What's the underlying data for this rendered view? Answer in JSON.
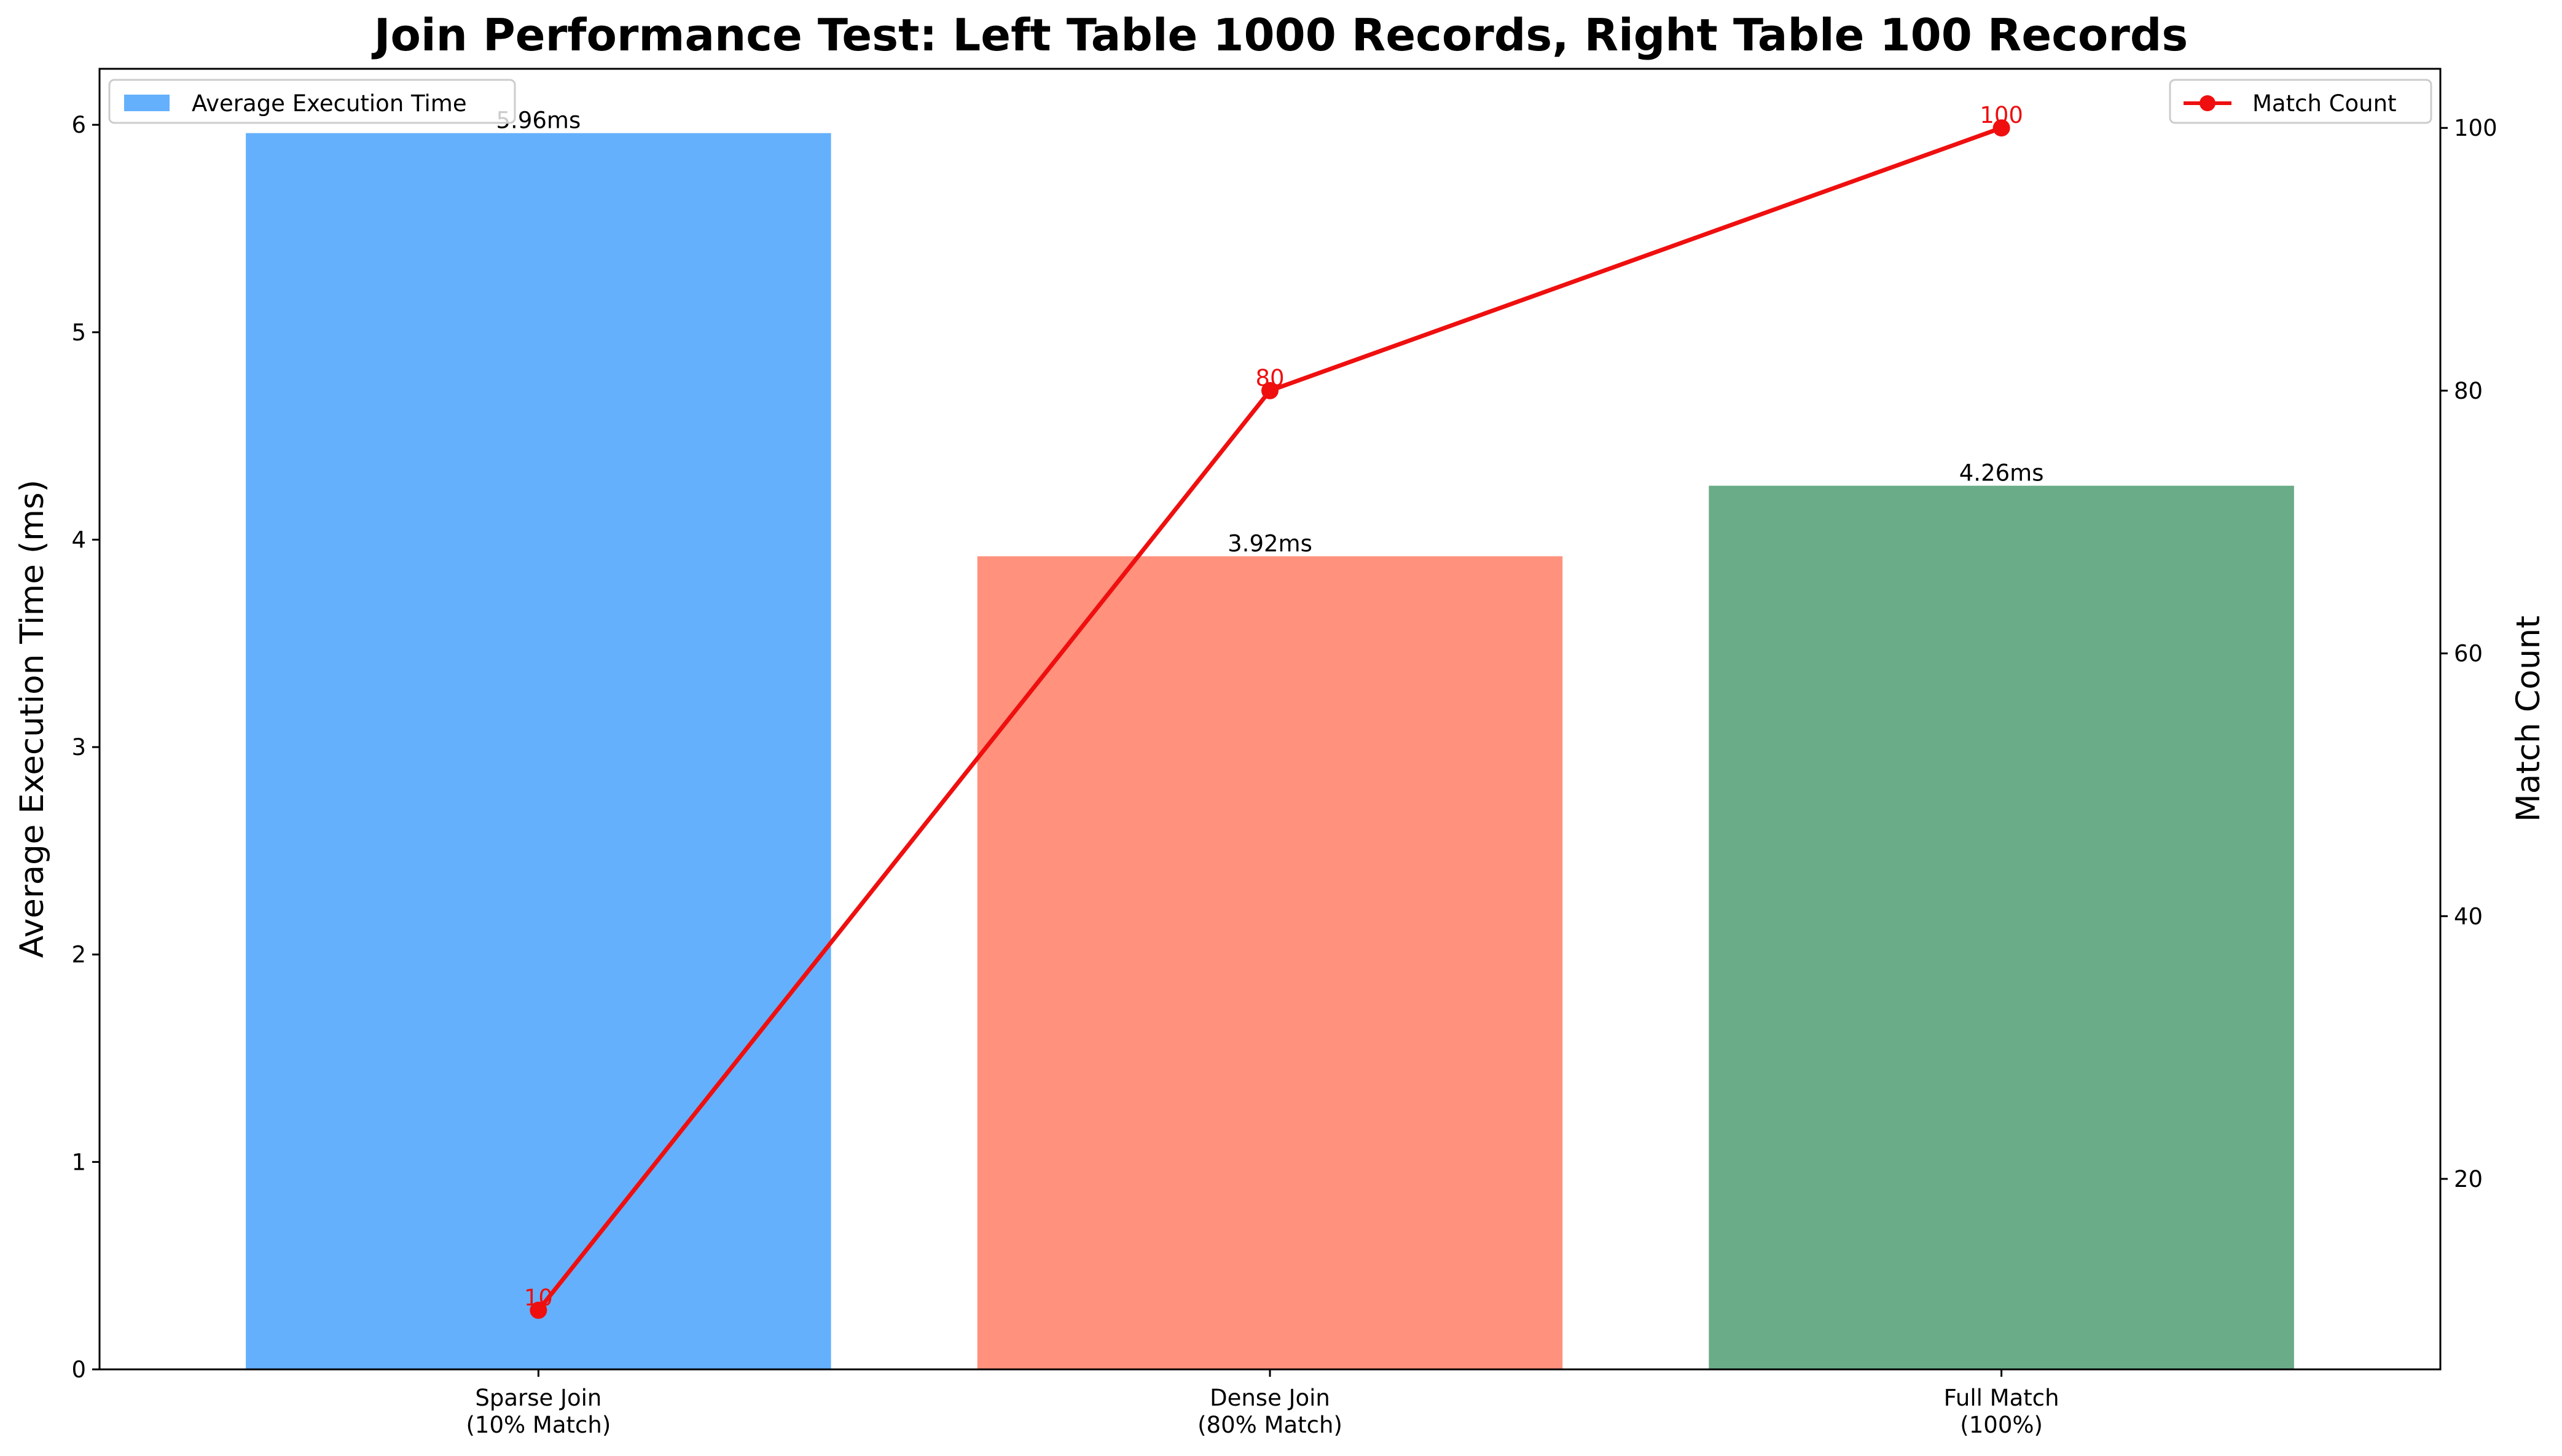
{
  "chart_data": {
    "type": "bar",
    "title": "Join Performance Test: Left Table 1000 Records, Right Table 100 Records",
    "categories": [
      [
        "Sparse Join",
        "(10% Match)"
      ],
      [
        "Dense Join",
        "(80% Match)"
      ],
      [
        "Full Match",
        "(100%)"
      ]
    ],
    "bar_series": {
      "name": "Average Execution Time",
      "values": [
        5.96,
        3.92,
        4.26
      ],
      "labels": [
        "5.96ms",
        "3.92ms",
        "4.26ms"
      ],
      "colors": [
        "#64b0fd",
        "#ff917d",
        "#6aac88"
      ]
    },
    "line_series": {
      "name": "Match Count",
      "values": [
        10,
        80,
        100
      ],
      "labels": [
        "10",
        "80",
        "100"
      ],
      "color": "#ef0f0f"
    },
    "ylabel": "Average Execution Time (ms)",
    "y2label": "Match Count",
    "ylim": [
      0,
      6.27
    ],
    "y2lim": [
      5.5,
      104.5
    ],
    "yticks": [
      0,
      1,
      2,
      3,
      4,
      5,
      6
    ],
    "y2ticks": [
      20,
      40,
      60,
      80,
      100
    ],
    "grid": false,
    "legend_bar_position": "top-left",
    "legend_line_position": "top-right"
  }
}
